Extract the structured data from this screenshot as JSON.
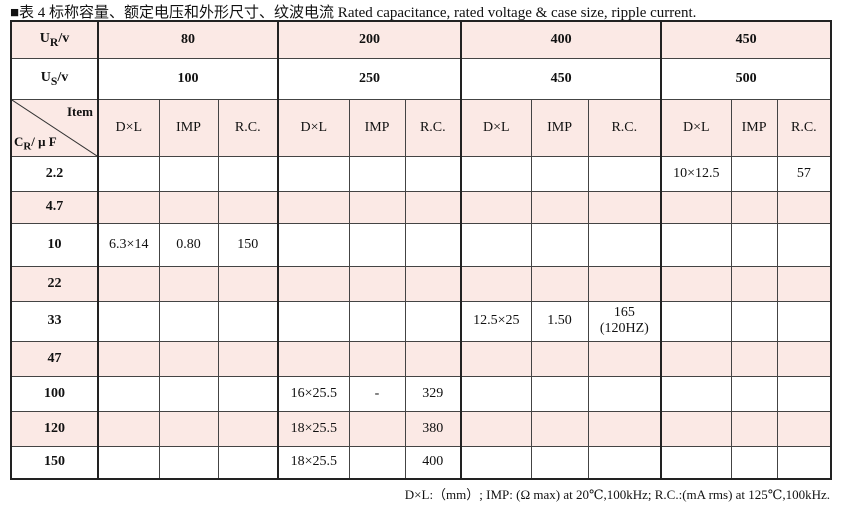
{
  "title": "■表 4  标称容量、额定电压和外形尺寸、纹波电流  Rated capacitance, rated voltage & case size, ripple current.",
  "table": {
    "rated_voltage": {
      "symbol": "U",
      "sub": "R",
      "unit": "/v",
      "values": [
        "80",
        "200",
        "400",
        "450"
      ]
    },
    "surge_voltage": {
      "symbol": "U",
      "sub": "S",
      "unit": "/v",
      "values": [
        "100",
        "250",
        "450",
        "500"
      ]
    },
    "item_header": {
      "item": "Item",
      "symbol": "C",
      "sub": "R",
      "unit": "/ μ F"
    },
    "columns": [
      "D×L",
      "IMP",
      "R.C.",
      "D×L",
      "IMP",
      "R.C.",
      "D×L",
      "IMP",
      "R.C.",
      "D×L",
      "IMP",
      "R.C."
    ],
    "rows": [
      {
        "cap": "2.2",
        "cells": [
          null,
          null,
          null,
          null,
          null,
          null,
          null,
          null,
          null,
          "10×12.5",
          null,
          "57"
        ]
      },
      {
        "cap": "4.7",
        "cells": [
          null,
          null,
          null,
          null,
          null,
          null,
          null,
          null,
          null,
          null,
          null,
          null
        ]
      },
      {
        "cap": "10",
        "cells": [
          "6.3×14",
          "0.80",
          "150",
          null,
          null,
          null,
          null,
          null,
          null,
          null,
          null,
          null
        ]
      },
      {
        "cap": "22",
        "cells": [
          null,
          null,
          null,
          null,
          null,
          null,
          null,
          null,
          null,
          null,
          null,
          null
        ]
      },
      {
        "cap": "33",
        "cells": [
          null,
          null,
          null,
          null,
          null,
          null,
          "12.5×25",
          "1.50",
          [
            "165",
            "(120HZ)"
          ],
          null,
          null,
          null
        ]
      },
      {
        "cap": "47",
        "cells": [
          null,
          null,
          null,
          null,
          null,
          null,
          null,
          null,
          null,
          null,
          null,
          null
        ]
      },
      {
        "cap": "100",
        "cells": [
          null,
          null,
          null,
          "16×25.5",
          "-",
          "329",
          null,
          null,
          null,
          null,
          null,
          null
        ]
      },
      {
        "cap": "120",
        "cells": [
          null,
          null,
          null,
          "18×25.5",
          null,
          "380",
          null,
          null,
          null,
          null,
          null,
          null
        ]
      },
      {
        "cap": "150",
        "cells": [
          null,
          null,
          null,
          "18×25.5",
          null,
          "400",
          null,
          null,
          null,
          null,
          null,
          null
        ]
      }
    ]
  },
  "footnote": "D×L:（mm）; IMP: (Ω max) at 20℃,100kHz; R.C.:(mA rms) at 125℃,100kHz."
}
